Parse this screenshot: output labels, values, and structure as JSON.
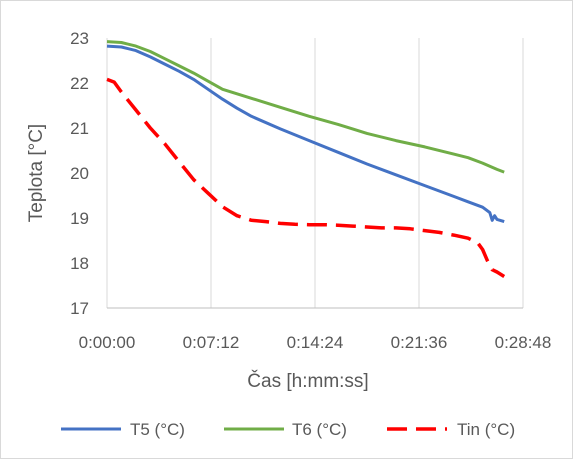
{
  "chart_data": {
    "type": "line",
    "title": "",
    "xlabel": "Čas [h:mm:ss]",
    "ylabel": "Teplota [°C]",
    "xlim": [
      0,
      1728
    ],
    "ylim": [
      17,
      23
    ],
    "x_ticks": [
      {
        "value": 0,
        "label": "0:00:00"
      },
      {
        "value": 432,
        "label": "0:07:12"
      },
      {
        "value": 864,
        "label": "0:14:24"
      },
      {
        "value": 1296,
        "label": "0:21:36"
      },
      {
        "value": 1728,
        "label": "0:28:48"
      }
    ],
    "y_ticks": [
      17,
      18,
      19,
      20,
      21,
      22,
      23
    ],
    "grid": "vertical",
    "legend_position": "bottom",
    "series": [
      {
        "name": "T5 (°C)",
        "color": "#4472C4",
        "dash": "solid",
        "points": [
          [
            0,
            22.82
          ],
          [
            60,
            22.8
          ],
          [
            120,
            22.72
          ],
          [
            180,
            22.58
          ],
          [
            240,
            22.42
          ],
          [
            300,
            22.26
          ],
          [
            360,
            22.08
          ],
          [
            420,
            21.86
          ],
          [
            480,
            21.64
          ],
          [
            540,
            21.44
          ],
          [
            600,
            21.26
          ],
          [
            720,
            20.98
          ],
          [
            840,
            20.72
          ],
          [
            960,
            20.46
          ],
          [
            1080,
            20.2
          ],
          [
            1200,
            19.96
          ],
          [
            1320,
            19.72
          ],
          [
            1440,
            19.48
          ],
          [
            1500,
            19.36
          ],
          [
            1560,
            19.24
          ],
          [
            1590,
            19.12
          ],
          [
            1600,
            18.95
          ],
          [
            1610,
            19.05
          ],
          [
            1620,
            18.97
          ],
          [
            1650,
            18.92
          ]
        ]
      },
      {
        "name": "T6 (°C)",
        "color": "#70AD47",
        "dash": "solid",
        "points": [
          [
            0,
            22.92
          ],
          [
            60,
            22.9
          ],
          [
            120,
            22.82
          ],
          [
            180,
            22.7
          ],
          [
            240,
            22.54
          ],
          [
            300,
            22.38
          ],
          [
            360,
            22.22
          ],
          [
            420,
            22.04
          ],
          [
            480,
            21.86
          ],
          [
            540,
            21.76
          ],
          [
            600,
            21.66
          ],
          [
            720,
            21.46
          ],
          [
            840,
            21.26
          ],
          [
            960,
            21.08
          ],
          [
            1080,
            20.88
          ],
          [
            1200,
            20.72
          ],
          [
            1320,
            20.58
          ],
          [
            1440,
            20.42
          ],
          [
            1500,
            20.34
          ],
          [
            1560,
            20.22
          ],
          [
            1620,
            20.08
          ],
          [
            1650,
            20.02
          ]
        ]
      },
      {
        "name": "Tin (°C)",
        "color": "#FF0000",
        "dash": "dashed",
        "points": [
          [
            0,
            22.08
          ],
          [
            30,
            22.02
          ],
          [
            60,
            21.8
          ],
          [
            120,
            21.4
          ],
          [
            180,
            21.0
          ],
          [
            240,
            20.65
          ],
          [
            300,
            20.25
          ],
          [
            360,
            19.85
          ],
          [
            420,
            19.55
          ],
          [
            480,
            19.25
          ],
          [
            540,
            19.05
          ],
          [
            600,
            18.95
          ],
          [
            660,
            18.92
          ],
          [
            720,
            18.88
          ],
          [
            780,
            18.86
          ],
          [
            840,
            18.85
          ],
          [
            900,
            18.85
          ],
          [
            960,
            18.84
          ],
          [
            1020,
            18.82
          ],
          [
            1080,
            18.8
          ],
          [
            1140,
            18.78
          ],
          [
            1200,
            18.78
          ],
          [
            1260,
            18.76
          ],
          [
            1320,
            18.72
          ],
          [
            1380,
            18.68
          ],
          [
            1440,
            18.62
          ],
          [
            1500,
            18.55
          ],
          [
            1540,
            18.45
          ],
          [
            1560,
            18.3
          ],
          [
            1580,
            18.05
          ],
          [
            1600,
            17.85
          ],
          [
            1620,
            17.8
          ],
          [
            1650,
            17.7
          ]
        ]
      }
    ]
  }
}
